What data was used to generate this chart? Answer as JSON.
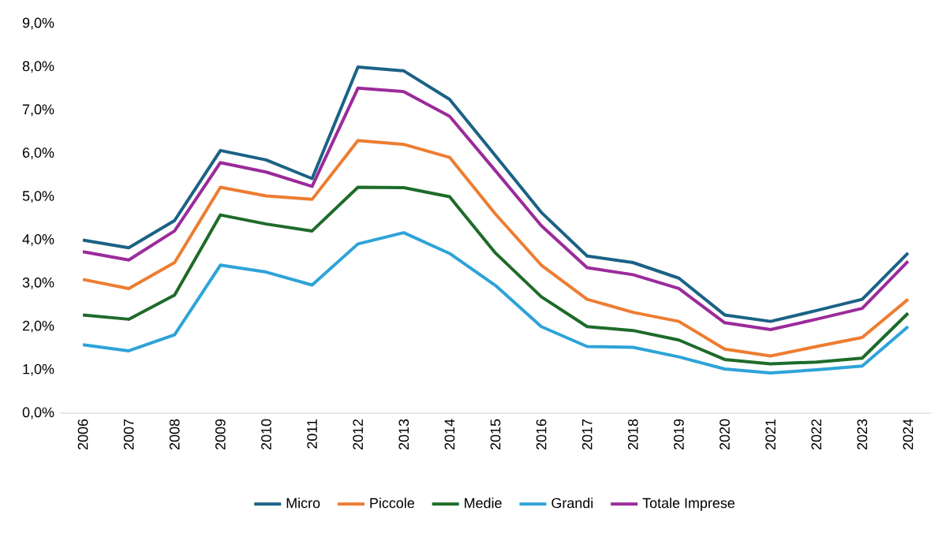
{
  "chart_data": {
    "type": "line",
    "categories": [
      "2006",
      "2007",
      "2008",
      "2009",
      "2010",
      "2011",
      "2012",
      "2013",
      "2014",
      "2015",
      "2016",
      "2017",
      "2018",
      "2019",
      "2020",
      "2021",
      "2022",
      "2023",
      "2024"
    ],
    "series": [
      {
        "name": "Micro",
        "color": "#1b6285",
        "values": [
          4.0,
          3.82,
          4.45,
          6.07,
          5.85,
          5.42,
          8.0,
          7.91,
          7.25,
          5.95,
          4.64,
          3.63,
          3.48,
          3.12,
          2.27,
          2.12,
          2.37,
          2.63,
          3.7
        ]
      },
      {
        "name": "Piccole",
        "color": "#ed7d31",
        "values": [
          3.09,
          2.88,
          3.48,
          5.22,
          5.02,
          4.94,
          6.3,
          6.21,
          5.91,
          4.6,
          3.42,
          2.63,
          2.33,
          2.12,
          1.48,
          1.32,
          1.54,
          1.75,
          2.63
        ]
      },
      {
        "name": "Medie",
        "color": "#1e6b2a",
        "values": [
          2.27,
          2.17,
          2.73,
          4.58,
          4.37,
          4.21,
          5.22,
          5.21,
          5.0,
          3.7,
          2.69,
          2.0,
          1.91,
          1.69,
          1.24,
          1.14,
          1.18,
          1.27,
          2.31
        ]
      },
      {
        "name": "Grandi",
        "color": "#2ea3d8",
        "values": [
          1.58,
          1.44,
          1.81,
          3.42,
          3.26,
          2.96,
          3.91,
          4.17,
          3.69,
          2.95,
          2.0,
          1.54,
          1.52,
          1.3,
          1.02,
          0.93,
          1.0,
          1.09,
          2.0
        ]
      },
      {
        "name": "Totale Imprese",
        "color": "#9b2b9a",
        "values": [
          3.73,
          3.54,
          4.21,
          5.79,
          5.57,
          5.24,
          7.51,
          7.43,
          6.86,
          5.6,
          4.33,
          3.36,
          3.2,
          2.88,
          2.09,
          1.93,
          2.17,
          2.42,
          3.51
        ]
      }
    ],
    "ylim": [
      0,
      9
    ],
    "yticks": [
      {
        "value": 0,
        "label": "0,0%"
      },
      {
        "value": 1,
        "label": "1,0%"
      },
      {
        "value": 2,
        "label": "2,0%"
      },
      {
        "value": 3,
        "label": "3,0%"
      },
      {
        "value": 4,
        "label": "4,0%"
      },
      {
        "value": 5,
        "label": "5,0%"
      },
      {
        "value": 6,
        "label": "6,0%"
      },
      {
        "value": 7,
        "label": "7,0%"
      },
      {
        "value": 8,
        "label": "8,0%"
      },
      {
        "value": 9,
        "label": "9,0%"
      }
    ],
    "grid": false,
    "legend": "bottom",
    "marker": "none",
    "line_style": "solid"
  }
}
